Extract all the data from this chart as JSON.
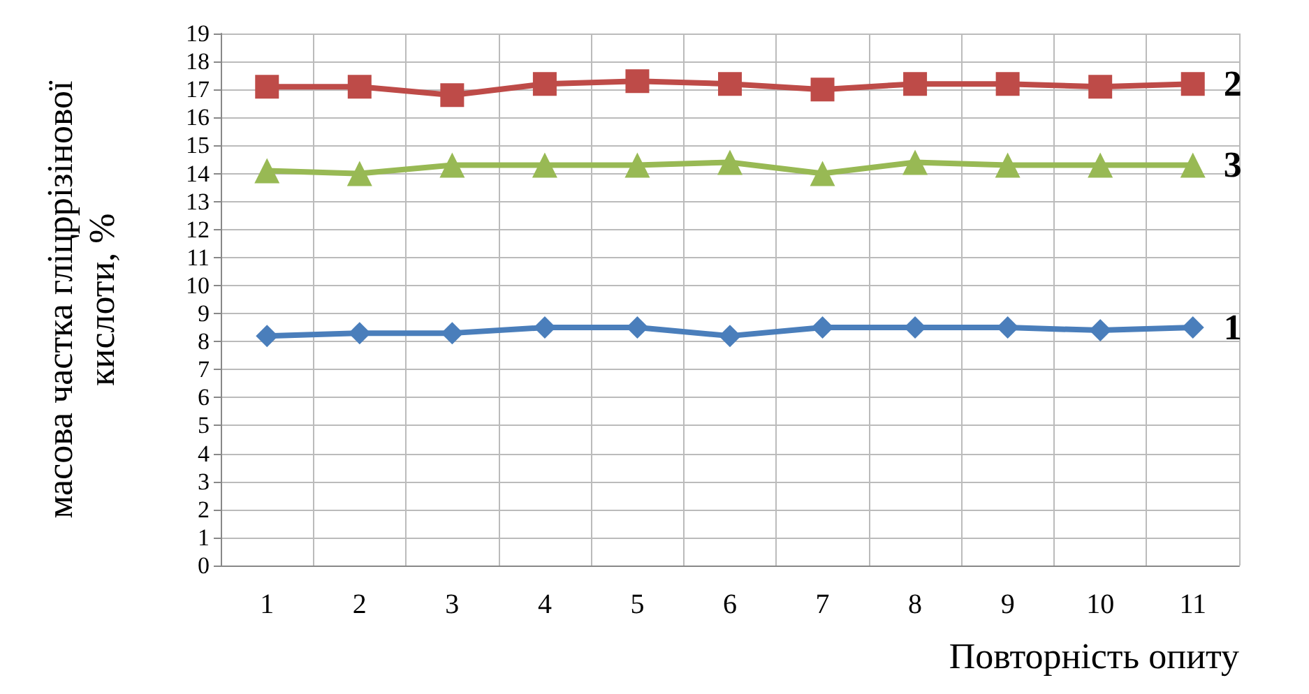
{
  "chart_data": {
    "type": "line",
    "xlabel": "Повторність опиту",
    "ylabel": "масова частка гліцррізінової кислоти, %",
    "categories": [
      "1",
      "2",
      "3",
      "4",
      "5",
      "6",
      "7",
      "8",
      "9",
      "10",
      "11"
    ],
    "series": [
      {
        "name": "1",
        "color": "#4a7ebb",
        "marker": "diamond",
        "values": [
          8.2,
          8.3,
          8.3,
          8.5,
          8.5,
          8.2,
          8.5,
          8.5,
          8.5,
          8.4,
          8.5
        ]
      },
      {
        "name": "2",
        "color": "#be4b48",
        "marker": "square",
        "values": [
          17.1,
          17.1,
          16.8,
          17.2,
          17.3,
          17.2,
          17.0,
          17.2,
          17.2,
          17.1,
          17.2
        ]
      },
      {
        "name": "3",
        "color": "#98b954",
        "marker": "triangle",
        "values": [
          14.1,
          14.0,
          14.3,
          14.3,
          14.3,
          14.4,
          14.0,
          14.4,
          14.3,
          14.3,
          14.3
        ]
      }
    ],
    "ylim": [
      0,
      19
    ],
    "yticks": [
      0,
      1,
      2,
      3,
      4,
      5,
      6,
      7,
      8,
      9,
      10,
      11,
      12,
      13,
      14,
      15,
      16,
      17,
      18,
      19
    ],
    "grid": true,
    "legend": false,
    "line_style": "solid"
  }
}
